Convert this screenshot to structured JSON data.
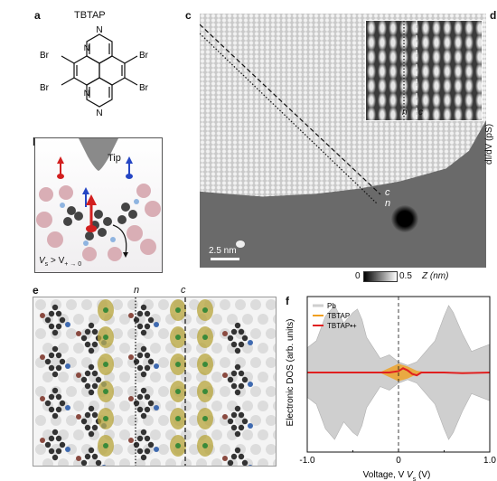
{
  "panels": {
    "a": "a",
    "b": "b",
    "c": "c",
    "d": "d",
    "e": "e",
    "f": "f"
  },
  "panel_a": {
    "title": "TBTAP",
    "br": "Br",
    "n": "N"
  },
  "panel_b": {
    "tip_label": "Tip",
    "bias_condition": "V",
    "bias_sub": "s",
    "bias_rel": " > V",
    "bias_rel_sub": "+ → 0"
  },
  "panel_c": {
    "line_labels": [
      "c",
      "n"
    ],
    "inset_labels": [
      "n",
      "c"
    ],
    "scale_bar": "2.5 nm",
    "colorbar_min": "0",
    "colorbar_max": "0.5",
    "colorbar_unit": "Z (nm)"
  },
  "panel_d": {
    "ylabel": "dI/dV (pS)"
  },
  "panel_e": {
    "line_labels": [
      "n",
      "c"
    ]
  },
  "chart_data": {
    "type": "area",
    "xlabel": "Voltage, V",
    "xlabel_sub": "s",
    "xlabel_unit": " (V)",
    "ylabel": "Electronic DOS (arb. units)",
    "xlim": [
      -1.0,
      1.0
    ],
    "x_ticks": [
      "-1.0",
      "0",
      "1.0"
    ],
    "legend": [
      "Pb",
      "TBTAP",
      "TBTAP•+"
    ],
    "legend_placement": "top-left",
    "colors": {
      "pb": "#cfcfcf",
      "tbtap": "#f0a020",
      "tbtap_cation": "#e02020"
    },
    "series": [
      {
        "name": "Pb",
        "x": [
          -1.0,
          -0.9,
          -0.8,
          -0.7,
          -0.6,
          -0.5,
          -0.45,
          -0.4,
          -0.35,
          -0.3,
          -0.2,
          -0.1,
          0.0,
          0.1,
          0.2,
          0.3,
          0.4,
          0.5,
          0.55,
          0.6,
          0.7,
          0.8,
          0.9,
          1.0
        ],
        "values": [
          0.35,
          0.45,
          0.8,
          0.95,
          0.7,
          0.85,
          0.9,
          0.75,
          0.5,
          0.4,
          0.2,
          0.25,
          0.15,
          0.1,
          0.15,
          0.3,
          0.45,
          0.8,
          0.95,
          0.85,
          0.55,
          0.3,
          0.35,
          0.4
        ]
      },
      {
        "name": "TBTAP",
        "x": [
          -1.0,
          -0.2,
          -0.1,
          0.0,
          0.05,
          0.1,
          0.15,
          0.2,
          0.3,
          1.0
        ],
        "values": [
          0.0,
          0.0,
          0.06,
          0.12,
          0.1,
          0.08,
          0.05,
          0.02,
          0.0,
          0.0
        ]
      },
      {
        "name": "TBTAP•+",
        "x": [
          -1.0,
          -0.1,
          0.0,
          0.05,
          0.1,
          0.15,
          0.2,
          0.25,
          0.5,
          0.7,
          1.0
        ],
        "values": [
          0.0,
          0.0,
          0.02,
          0.06,
          0.03,
          -0.02,
          -0.04,
          0.0,
          0.0,
          -0.01,
          0.0
        ]
      }
    ]
  }
}
